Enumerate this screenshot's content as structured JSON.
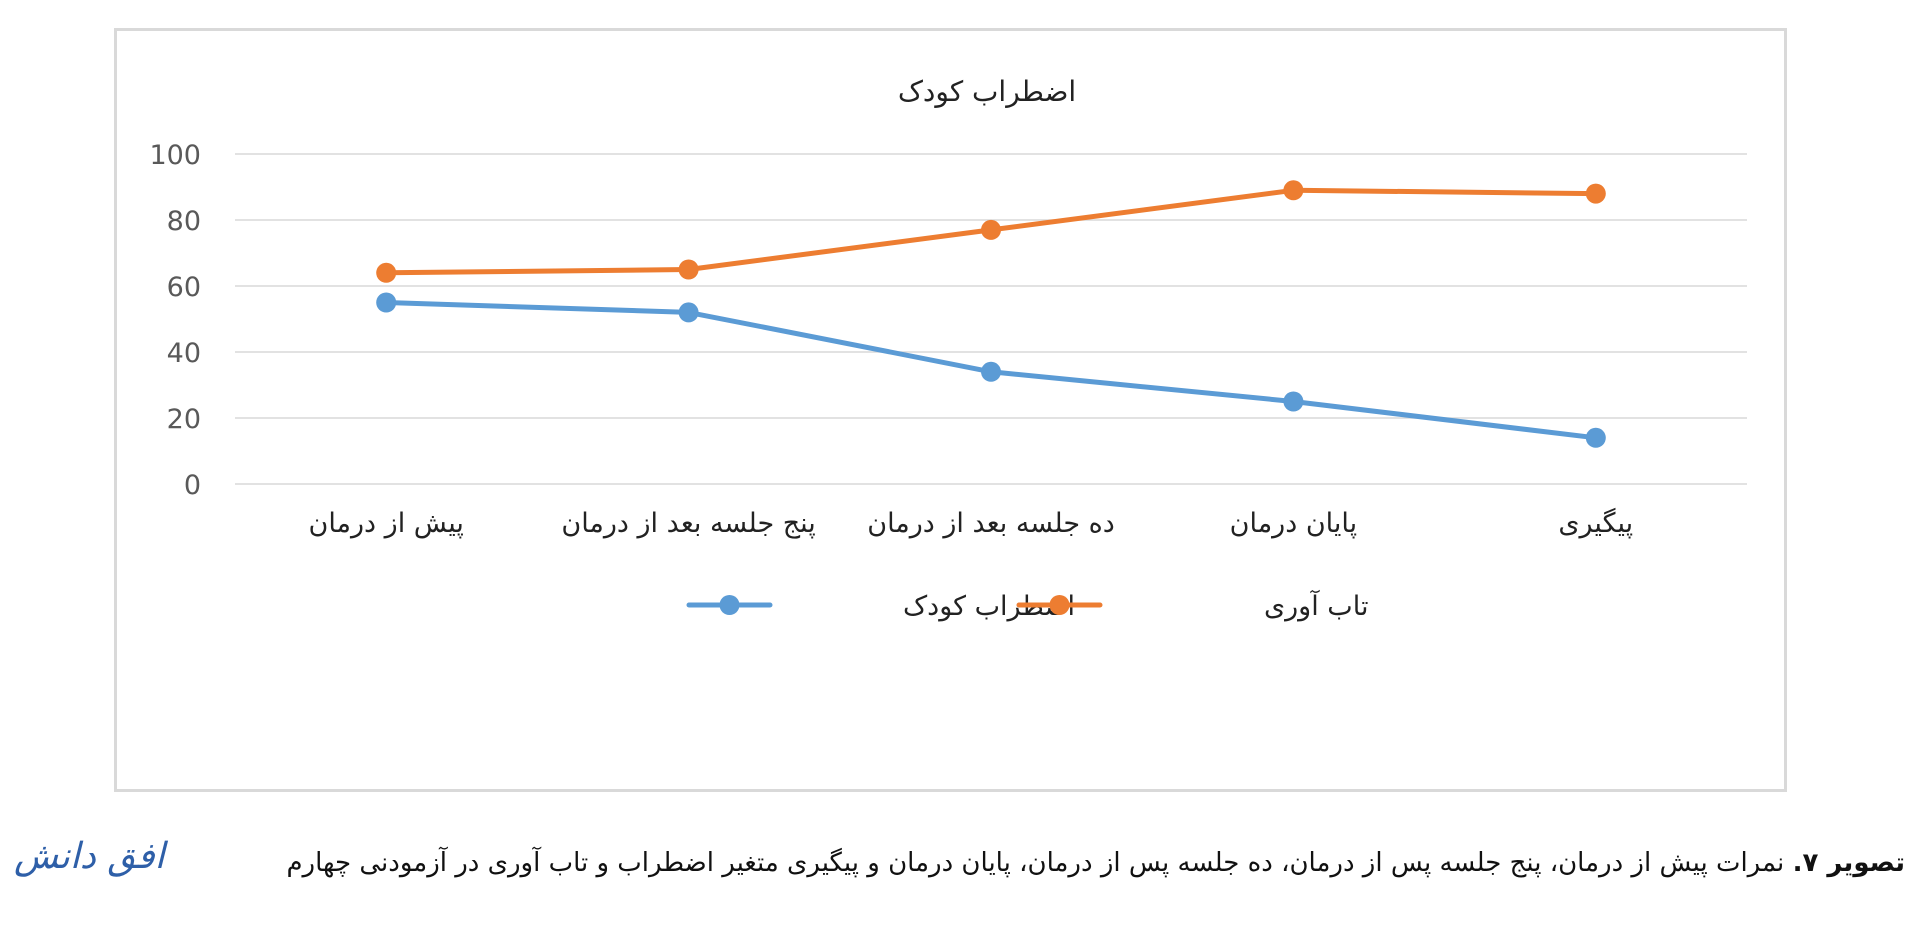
{
  "chart_data": {
    "type": "line",
    "title": "اضطراب کودک",
    "categories": [
      "پیش از درمان",
      "پنج جلسه بعد از درمان",
      "ده جلسه بعد از درمان",
      "پایان درمان",
      "پیگیری"
    ],
    "series": [
      {
        "name": "اضطراب کودک",
        "color": "#5b9bd5",
        "values": [
          55,
          52,
          34,
          25,
          14
        ]
      },
      {
        "name": "تاب آوری",
        "color": "#ed7d31",
        "values": [
          64,
          65,
          77,
          89,
          88
        ]
      }
    ],
    "ylim": [
      0,
      100
    ],
    "yticks": [
      "0",
      "20",
      "40",
      "60",
      "80",
      "100"
    ],
    "xlabel": "",
    "ylabel": "",
    "grid": true,
    "legend": "bottom"
  },
  "caption": {
    "label": "تصویر ۷.",
    "text": "نمرات پیش از درمان، پنج جلسه پس از درمان، ده جلسه پس از درمان، پایان درمان و پیگیری متغیر اضطراب و تاب آوری در آزمودنی چهارم"
  },
  "logo": "افق دانش"
}
